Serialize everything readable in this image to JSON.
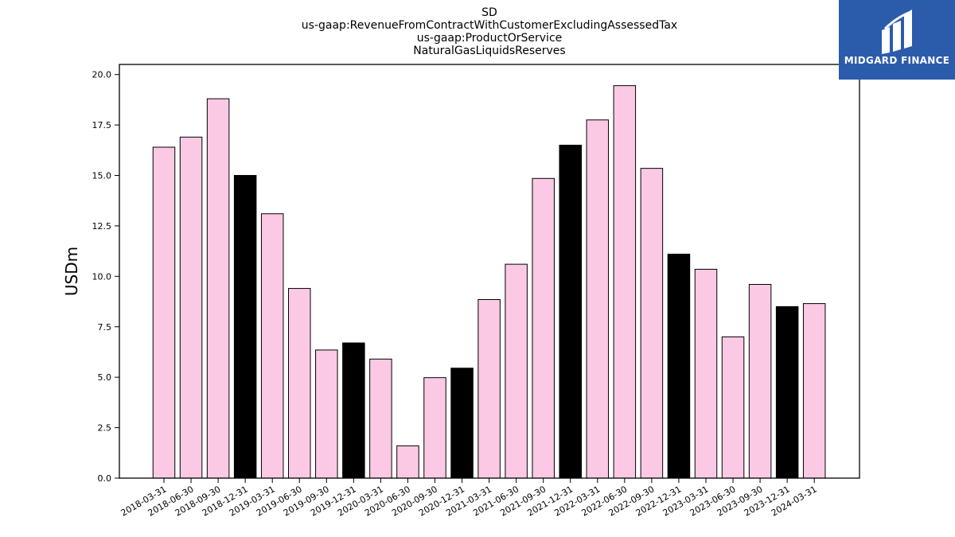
{
  "chart_data": {
    "type": "bar",
    "title_lines": [
      "SD",
      "us-gaap:RevenueFromContractWithCustomerExcludingAssessedTax",
      "us-gaap:ProductOrService",
      "NaturalGasLiquidsReserves"
    ],
    "xlabel": "",
    "ylabel": "USDm",
    "ylim": [
      0,
      20.5
    ],
    "yticks": [
      0.0,
      2.5,
      5.0,
      7.5,
      10.0,
      12.5,
      15.0,
      17.5,
      20.0
    ],
    "ytick_labels": [
      "0.0",
      "2.5",
      "5.0",
      "7.5",
      "10.0",
      "12.5",
      "15.0",
      "17.5",
      "20.0"
    ],
    "categories": [
      "2018-03-31",
      "2018-06-30",
      "2018-09-30",
      "2018-12-31",
      "2019-03-31",
      "2019-06-30",
      "2019-09-30",
      "2019-12-31",
      "2020-03-31",
      "2020-06-30",
      "2020-09-30",
      "2020-12-31",
      "2021-03-31",
      "2021-06-30",
      "2021-09-30",
      "2021-12-31",
      "2022-03-31",
      "2022-06-30",
      "2022-09-30",
      "2022-12-31",
      "2023-03-31",
      "2023-06-30",
      "2023-09-30",
      "2023-12-31",
      "2024-03-31"
    ],
    "values": [
      16.4,
      16.9,
      18.8,
      15.0,
      13.1,
      9.4,
      6.35,
      6.7,
      5.9,
      1.6,
      4.98,
      5.45,
      8.85,
      10.6,
      14.85,
      16.5,
      17.75,
      19.45,
      15.35,
      11.1,
      10.35,
      7.0,
      9.6,
      8.5,
      8.65
    ],
    "bar_colors": [
      "#fbc9e4",
      "#fbc9e4",
      "#fbc9e4",
      "#000000",
      "#fbc9e4",
      "#fbc9e4",
      "#fbc9e4",
      "#000000",
      "#fbc9e4",
      "#fbc9e4",
      "#fbc9e4",
      "#000000",
      "#fbc9e4",
      "#fbc9e4",
      "#fbc9e4",
      "#000000",
      "#fbc9e4",
      "#fbc9e4",
      "#fbc9e4",
      "#000000",
      "#fbc9e4",
      "#fbc9e4",
      "#fbc9e4",
      "#000000",
      "#fbc9e4"
    ],
    "grid": false,
    "legend": "none"
  },
  "logo": {
    "text": "MIDGARD FINANCE",
    "icon": "midgard-logo-icon",
    "background": "#2b5bab"
  }
}
